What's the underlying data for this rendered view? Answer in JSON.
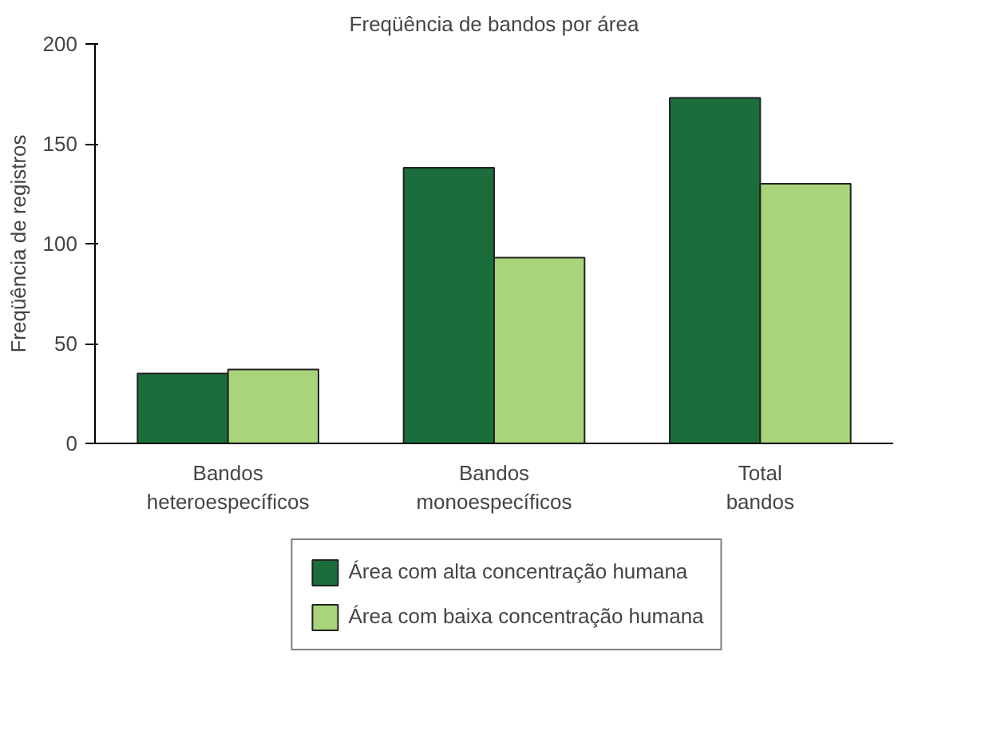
{
  "chart_data": {
    "type": "bar",
    "title": "Freqüência de bandos por área",
    "ylabel": "Freqüência de registros",
    "categories": [
      "Bandos heteroespecíficos",
      "Bandos monoespecíficos",
      "Total bandos"
    ],
    "series": [
      {
        "name": "Área com alta concentração humana",
        "color": "#1b6e3c",
        "values": [
          35,
          138,
          173
        ]
      },
      {
        "name": "Área com baixa concentração humana",
        "color": "#a9d47a",
        "values": [
          37,
          93,
          130
        ]
      }
    ],
    "ylim": [
      0,
      200
    ],
    "yticks": [
      0,
      50,
      100,
      150,
      200
    ],
    "grid": false,
    "legend": "bottom"
  }
}
